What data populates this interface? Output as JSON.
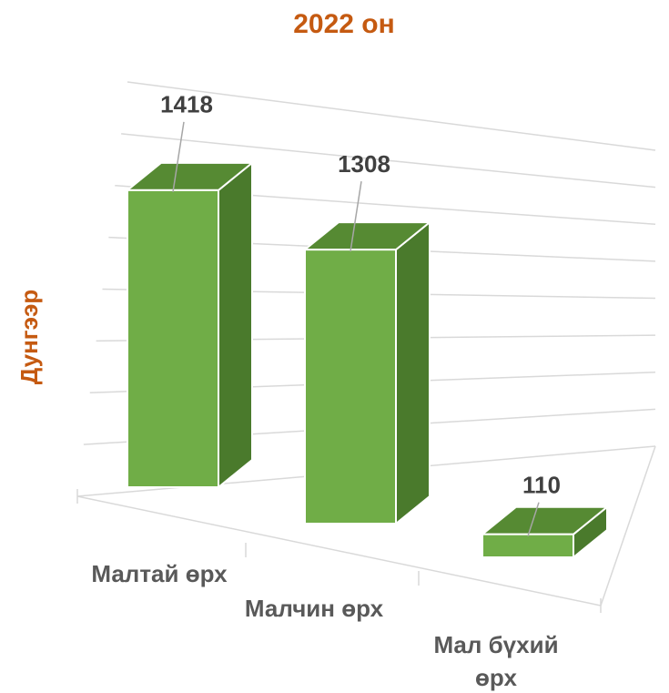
{
  "chart_data": {
    "type": "bar",
    "title": "2022 он",
    "y_label": "Дунгээр",
    "categories": [
      "Малтай өрх",
      "Малчин өрх",
      "Мал бүхий өрх"
    ],
    "values": [
      1418,
      1308,
      110
    ],
    "color": "#70ad47",
    "ylim": [
      0,
      1600
    ],
    "yticks": [
      0,
      200,
      400,
      600,
      800,
      1000,
      1200,
      1400,
      1600
    ],
    "grid": true
  }
}
